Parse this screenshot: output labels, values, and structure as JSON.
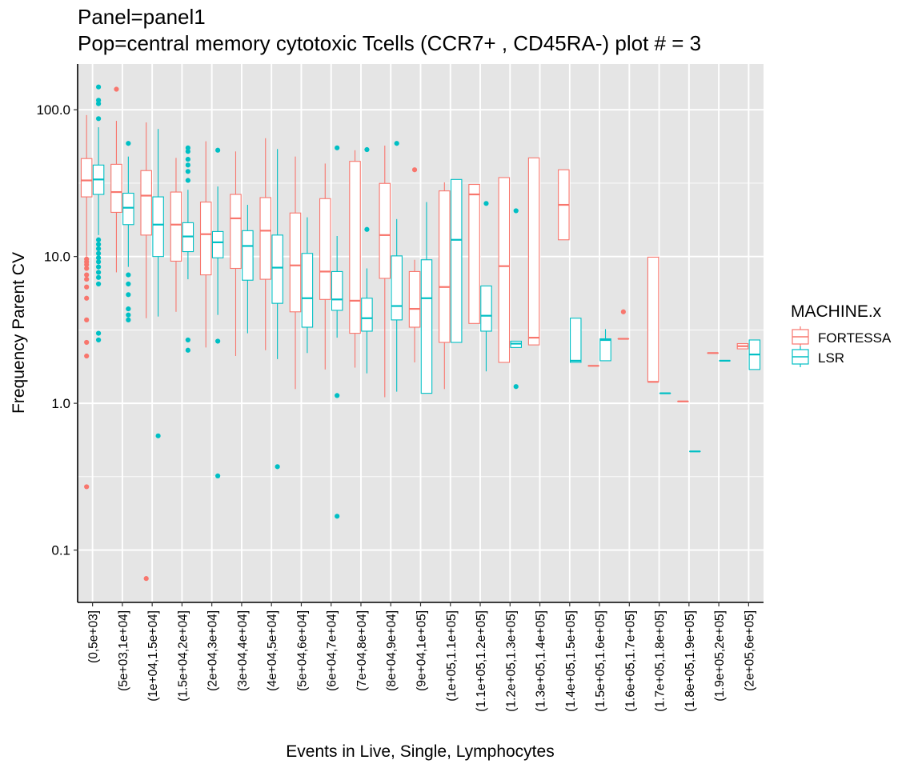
{
  "chart_data": {
    "type": "box",
    "title": "Panel=panel1",
    "subtitle": "Pop=central memory cytotoxic Tcells (CCR7+ , CD45RA-) plot # = 3",
    "xlabel": "Events in Live, Single, Lymphocytes",
    "ylabel": "Frequency Parent CV",
    "y_scale": "log10",
    "ylim": [
      0.044,
      205
    ],
    "y_ticks": [
      0.1,
      1.0,
      10.0,
      100.0
    ],
    "y_tick_labels": [
      "0.1",
      "1.0",
      "10.0",
      "100.0"
    ],
    "grid": true,
    "legend_position": "right",
    "legend": {
      "title": "MACHINE.x",
      "entries": [
        "FORTESSA",
        "LSR"
      ]
    },
    "colors": {
      "FORTESSA": "#F8766D",
      "LSR": "#00BFC4",
      "panel": "#E5E5E5",
      "grid": "#FFFFFF"
    },
    "categories": [
      "(0,5e+03]",
      "(5e+03,1e+04]",
      "(1e+04,1.5e+04]",
      "(1.5e+04,2e+04]",
      "(2e+04,3e+04]",
      "(3e+04,4e+04]",
      "(4e+04,5e+04]",
      "(5e+04,6e+04]",
      "(6e+04,7e+04]",
      "(7e+04,8e+04]",
      "(8e+04,9e+04]",
      "(9e+04,1e+05]",
      "(1e+05,1.1e+05]",
      "(1.1e+05,1.2e+05]",
      "(1.2e+05,1.3e+05]",
      "(1.3e+05,1.4e+05]",
      "(1.4e+05,1.5e+05]",
      "(1.5e+05,1.6e+05]",
      "(1.6e+05,1.7e+05]",
      "(1.7e+05,1.8e+05]",
      "(1.8e+05,1.9e+05]",
      "(1.9e+05,2e+05]",
      "(2e+05,6e+05]"
    ],
    "series": [
      {
        "name": "FORTESSA",
        "boxes": [
          {
            "category": "(0,5e+03]",
            "min": 10.0,
            "q1": 25.5,
            "median": 33.0,
            "q3": 46.5,
            "max": 92.0,
            "outliers": [
              0.27,
              2.1,
              2.6,
              3.7,
              5.2,
              6.2,
              7.0,
              7.5,
              8.3,
              8.8,
              9.2,
              9.6
            ]
          },
          {
            "category": "(5e+03,1e+04]",
            "min": 7.8,
            "q1": 20.0,
            "median": 27.5,
            "q3": 42.5,
            "max": 84.0,
            "outliers": [
              138.0
            ]
          },
          {
            "category": "(1e+04,1.5e+04]",
            "min": 3.8,
            "q1": 14.0,
            "median": 26.0,
            "q3": 38.5,
            "max": 82.0,
            "outliers": [
              0.064
            ]
          },
          {
            "category": "(1.5e+04,2e+04]",
            "min": 4.2,
            "q1": 9.3,
            "median": 16.5,
            "q3": 27.5,
            "max": 47.0,
            "outliers": []
          },
          {
            "category": "(2e+04,3e+04]",
            "min": 2.4,
            "q1": 7.5,
            "median": 14.2,
            "q3": 23.5,
            "max": 61.0,
            "outliers": []
          },
          {
            "category": "(3e+04,4e+04]",
            "min": 2.1,
            "q1": 8.3,
            "median": 18.2,
            "q3": 26.5,
            "max": 52.0,
            "outliers": []
          },
          {
            "category": "(4e+04,5e+04]",
            "min": 2.3,
            "q1": 7.0,
            "median": 15.0,
            "q3": 25.2,
            "max": 64.0,
            "outliers": []
          },
          {
            "category": "(5e+04,6e+04]",
            "min": 1.25,
            "q1": 4.2,
            "median": 8.7,
            "q3": 19.8,
            "max": 48.0,
            "outliers": []
          },
          {
            "category": "(6e+04,7e+04]",
            "min": 1.7,
            "q1": 5.1,
            "median": 7.9,
            "q3": 24.8,
            "max": 43.0,
            "outliers": []
          },
          {
            "category": "(7e+04,8e+04]",
            "min": 1.75,
            "q1": 3.0,
            "median": 5.0,
            "q3": 44.5,
            "max": 53.0,
            "outliers": []
          },
          {
            "category": "(8e+04,9e+04]",
            "min": 1.1,
            "q1": 7.1,
            "median": 14.0,
            "q3": 31.5,
            "max": 57.0,
            "outliers": []
          },
          {
            "category": "(9e+04,1e+05]",
            "min": 1.9,
            "q1": 3.3,
            "median": 4.4,
            "q3": 7.9,
            "max": 9.5,
            "outliers": [
              39.0
            ]
          },
          {
            "category": "(1e+05,1.1e+05]",
            "min": 1.25,
            "q1": 2.6,
            "median": 6.2,
            "q3": 28.0,
            "max": 32.0,
            "outliers": []
          },
          {
            "category": "(1.1e+05,1.2e+05]",
            "min": 3.5,
            "q1": 3.5,
            "median": 26.5,
            "q3": 31.0,
            "max": 31.0,
            "outliers": []
          },
          {
            "category": "(1.2e+05,1.3e+05]",
            "min": 1.9,
            "q1": 1.9,
            "median": 8.6,
            "q3": 34.5,
            "max": 34.5,
            "outliers": []
          },
          {
            "category": "(1.3e+05,1.4e+05]",
            "min": 2.5,
            "q1": 2.5,
            "median": 2.8,
            "q3": 47.0,
            "max": 47.0,
            "outliers": []
          },
          {
            "category": "(1.4e+05,1.5e+05]",
            "min": 13.0,
            "q1": 13.0,
            "median": 22.5,
            "q3": 39.0,
            "max": 39.0,
            "outliers": []
          },
          {
            "category": "(1.5e+05,1.6e+05]",
            "min": 1.8,
            "q1": 1.8,
            "median": 1.8,
            "q3": 1.8,
            "max": 1.8,
            "outliers": []
          },
          {
            "category": "(1.6e+05,1.7e+05]",
            "min": 2.75,
            "q1": 2.75,
            "median": 2.75,
            "q3": 2.75,
            "max": 2.75,
            "outliers": [
              4.2
            ]
          },
          {
            "category": "(1.7e+05,1.8e+05]",
            "min": 1.4,
            "q1": 1.4,
            "median": 1.4,
            "q3": 9.9,
            "max": 9.9,
            "outliers": []
          },
          {
            "category": "(1.8e+05,1.9e+05]",
            "min": 1.03,
            "q1": 1.03,
            "median": 1.03,
            "q3": 1.03,
            "max": 1.03,
            "outliers": []
          },
          {
            "category": "(1.9e+05,2e+05]",
            "min": 2.2,
            "q1": 2.2,
            "median": 2.2,
            "q3": 2.2,
            "max": 2.2,
            "outliers": []
          },
          {
            "category": "(2e+05,6e+05]",
            "min": 2.35,
            "q1": 2.35,
            "median": 2.45,
            "q3": 2.55,
            "max": 2.55,
            "outliers": []
          }
        ]
      },
      {
        "name": "LSR",
        "boxes": [
          {
            "category": "(0,5e+03]",
            "min": 14.0,
            "q1": 26.5,
            "median": 33.5,
            "q3": 42.0,
            "max": 76.0,
            "outliers": [
              2.7,
              3.0,
              6.5,
              7.2,
              7.8,
              8.5,
              9.2,
              9.8,
              10.5,
              11.3,
              12.1,
              13.0,
              87.0,
              110.0,
              116.0,
              143.0
            ]
          },
          {
            "category": "(5e+03,1e+04]",
            "min": 8.5,
            "q1": 16.5,
            "median": 21.5,
            "q3": 27.0,
            "max": 48.0,
            "outliers": [
              3.7,
              4.0,
              4.4,
              5.5,
              6.5,
              7.5,
              59.0
            ]
          },
          {
            "category": "(1e+04,1.5e+04]",
            "min": 3.9,
            "q1": 10.0,
            "median": 16.5,
            "q3": 25.5,
            "max": 74.0,
            "outliers": [
              0.6
            ]
          },
          {
            "category": "(1.5e+04,2e+04]",
            "min": 7.0,
            "q1": 10.8,
            "median": 13.7,
            "q3": 17.0,
            "max": 28.5,
            "outliers": [
              2.3,
              2.7,
              33.0,
              38.0,
              42.0,
              46.0,
              52.0,
              55.0
            ]
          },
          {
            "category": "(2e+04,3e+04]",
            "min": 4.0,
            "q1": 9.8,
            "median": 12.5,
            "q3": 14.8,
            "max": 30.0,
            "outliers": [
              0.32,
              2.65,
              53.0
            ]
          },
          {
            "category": "(3e+04,4e+04]",
            "min": 3.0,
            "q1": 6.9,
            "median": 11.8,
            "q3": 15.0,
            "max": 22.5,
            "outliers": []
          },
          {
            "category": "(4e+04,5e+04]",
            "min": 2.0,
            "q1": 4.8,
            "median": 8.4,
            "q3": 14.0,
            "max": 54.0,
            "outliers": [
              0.37
            ]
          },
          {
            "category": "(5e+04,6e+04]",
            "min": 2.2,
            "q1": 3.3,
            "median": 5.2,
            "q3": 10.5,
            "max": 18.5,
            "outliers": []
          },
          {
            "category": "(6e+04,7e+04]",
            "min": 2.8,
            "q1": 4.3,
            "median": 5.1,
            "q3": 7.9,
            "max": 13.8,
            "outliers": [
              0.17,
              1.13,
              55.0
            ]
          },
          {
            "category": "(7e+04,8e+04]",
            "min": 1.6,
            "q1": 3.1,
            "median": 3.8,
            "q3": 5.2,
            "max": 8.3,
            "outliers": [
              15.3,
              53.5
            ]
          },
          {
            "category": "(8e+04,9e+04]",
            "min": 1.2,
            "q1": 3.7,
            "median": 4.6,
            "q3": 10.1,
            "max": 18.0,
            "outliers": [
              59.0
            ]
          },
          {
            "category": "(9e+04,1e+05]",
            "min": 1.17,
            "q1": 1.17,
            "median": 5.2,
            "q3": 9.5,
            "max": 23.5,
            "outliers": []
          },
          {
            "category": "(1e+05,1.1e+05]",
            "min": 2.6,
            "q1": 2.6,
            "median": 13.0,
            "q3": 33.5,
            "max": 33.5,
            "outliers": []
          },
          {
            "category": "(1.1e+05,1.2e+05]",
            "min": 1.65,
            "q1": 3.1,
            "median": 3.95,
            "q3": 6.3,
            "max": 6.3,
            "outliers": [
              23.0
            ]
          },
          {
            "category": "(1.2e+05,1.3e+05]",
            "min": 2.4,
            "q1": 2.4,
            "median": 2.55,
            "q3": 2.65,
            "max": 2.65,
            "outliers": [
              1.3,
              20.5
            ]
          },
          {
            "category": "(1.4e+05,1.5e+05]",
            "min": 1.9,
            "q1": 1.9,
            "median": 1.95,
            "q3": 3.8,
            "max": 3.8,
            "outliers": []
          },
          {
            "category": "(1.5e+05,1.6e+05]",
            "min": 1.95,
            "q1": 1.95,
            "median": 2.7,
            "q3": 2.75,
            "max": 3.2,
            "outliers": []
          },
          {
            "category": "(1.7e+05,1.8e+05]",
            "min": 1.17,
            "q1": 1.17,
            "median": 1.17,
            "q3": 1.17,
            "max": 1.17,
            "outliers": []
          },
          {
            "category": "(1.8e+05,1.9e+05]",
            "min": 0.47,
            "q1": 0.47,
            "median": 0.47,
            "q3": 0.47,
            "max": 0.47,
            "outliers": []
          },
          {
            "category": "(1.9e+05,2e+05]",
            "min": 1.95,
            "q1": 1.95,
            "median": 1.95,
            "q3": 1.95,
            "max": 1.95,
            "outliers": []
          },
          {
            "category": "(2e+05,6e+05]",
            "min": 1.7,
            "q1": 1.7,
            "median": 2.15,
            "q3": 2.7,
            "max": 2.7,
            "outliers": []
          }
        ]
      }
    ]
  }
}
